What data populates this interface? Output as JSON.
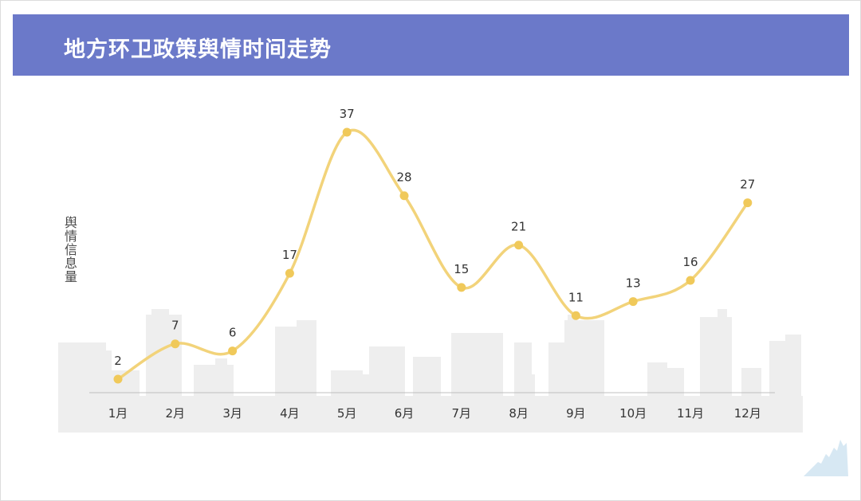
{
  "title": "地方环卫政策舆情时间走势",
  "colors": {
    "header": "#6b79c9",
    "line": "#f2d37a",
    "marker": "#f0c95a",
    "axis": "#bfbfbf",
    "skyline": "#eeeeee"
  },
  "chart_data": {
    "type": "line",
    "smooth": true,
    "title": "",
    "xlabel": "",
    "ylabel": "舆情信息量",
    "categories": [
      "1月",
      "2月",
      "3月",
      "4月",
      "5月",
      "6月",
      "7月",
      "8月",
      "9月",
      "10月",
      "11月",
      "12月"
    ],
    "series": [
      {
        "values": [
          2,
          7,
          6,
          17,
          37,
          28,
          15,
          21,
          11,
          13,
          16,
          27
        ]
      }
    ],
    "ylim": [
      0,
      37
    ],
    "grid": false,
    "legend": "none",
    "data_labels": true
  }
}
